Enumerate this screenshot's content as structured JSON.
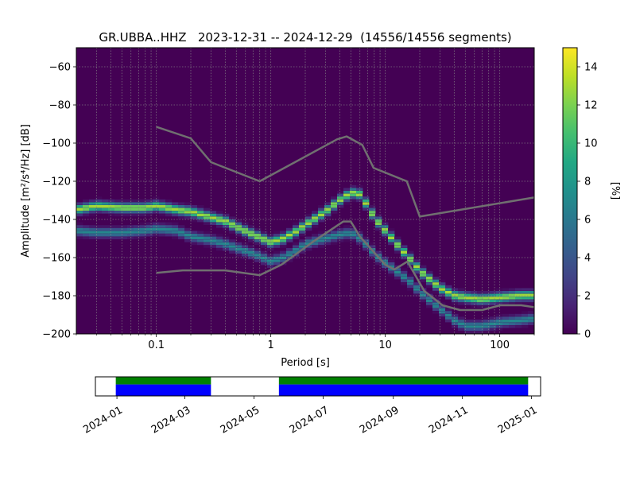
{
  "chart_data": [
    {
      "type": "heatmap",
      "title": "GR.UBBA..HHZ   2023-12-31 -- 2024-12-29  (14556/14556 segments)",
      "xlabel": "Period [s]",
      "ylabel": "Amplitude [m²/s⁴/Hz] [dB]",
      "x_scale": "log",
      "xlim": [
        0.02,
        200
      ],
      "ylim": [
        -200,
        -50
      ],
      "x_ticks": [
        {
          "value": 0.1,
          "label": "0.1"
        },
        {
          "value": 1,
          "label": "1"
        },
        {
          "value": 10,
          "label": "10"
        },
        {
          "value": 100,
          "label": "100"
        }
      ],
      "y_ticks": [
        -60,
        -80,
        -100,
        -120,
        -140,
        -160,
        -180,
        -200
      ],
      "grid": true,
      "colormap": "viridis",
      "colorbar": {
        "label": "[%]",
        "range": [
          0,
          15
        ],
        "ticks": [
          0,
          2,
          4,
          6,
          8,
          10,
          12,
          14
        ]
      },
      "colors": {
        "background": "#440154",
        "model_line": "#707070",
        "grid": "#8a8a8a"
      },
      "density_branches": [
        {
          "name": "",
          "points": [
            [
              0.02,
              -135
            ],
            [
              0.03,
              -133
            ],
            [
              0.05,
              -134
            ],
            [
              0.08,
              -134
            ],
            [
              0.1,
              -133
            ],
            [
              0.15,
              -135
            ],
            [
              0.2,
              -136
            ],
            [
              0.3,
              -139
            ],
            [
              0.4,
              -141
            ],
            [
              0.5,
              -144
            ],
            [
              0.7,
              -148
            ],
            [
              1,
              -152
            ],
            [
              1.3,
              -150
            ],
            [
              1.7,
              -146
            ],
            [
              2,
              -143
            ],
            [
              3,
              -136
            ],
            [
              4,
              -130
            ],
            [
              5,
              -126
            ],
            [
              6,
              -127
            ],
            [
              7,
              -133
            ],
            [
              8,
              -139
            ],
            [
              10,
              -146
            ],
            [
              13,
              -154
            ],
            [
              16,
              -160
            ],
            [
              20,
              -167
            ],
            [
              30,
              -176
            ],
            [
              40,
              -180
            ],
            [
              50,
              -181
            ],
            [
              70,
              -182
            ],
            [
              100,
              -181
            ],
            [
              150,
              -180
            ],
            [
              200,
              -180
            ]
          ],
          "peak": 13
        },
        {
          "name": "",
          "points": [
            [
              0.02,
              -146
            ],
            [
              0.03,
              -147
            ],
            [
              0.05,
              -147
            ],
            [
              0.08,
              -146
            ],
            [
              0.1,
              -145
            ],
            [
              0.15,
              -146
            ],
            [
              0.2,
              -149
            ],
            [
              0.3,
              -151
            ],
            [
              0.4,
              -153
            ],
            [
              0.5,
              -155
            ],
            [
              0.7,
              -158
            ],
            [
              1,
              -162
            ],
            [
              1.3,
              -160
            ],
            [
              1.7,
              -156
            ],
            [
              2,
              -153
            ],
            [
              3,
              -150
            ],
            [
              4,
              -148
            ],
            [
              5,
              -147
            ],
            [
              6,
              -150
            ],
            [
              7,
              -154
            ],
            [
              8,
              -158
            ],
            [
              10,
              -163
            ],
            [
              13,
              -168
            ],
            [
              16,
              -172
            ],
            [
              20,
              -178
            ],
            [
              30,
              -187
            ],
            [
              40,
              -193
            ],
            [
              50,
              -196
            ],
            [
              70,
              -196
            ],
            [
              100,
              -194
            ],
            [
              150,
              -193
            ],
            [
              200,
              -192
            ]
          ],
          "peak": 7
        }
      ],
      "series": [
        {
          "points": [
            [
              0.1,
              -91.5
            ],
            [
              0.2,
              -97.5
            ],
            [
              0.3,
              -110
            ],
            [
              0.8,
              -120
            ],
            [
              3.8,
              -98
            ],
            [
              4.6,
              -96.5
            ],
            [
              6.3,
              -101
            ],
            [
              7.9,
              -113
            ],
            [
              15.4,
              -120
            ],
            [
              20,
              -138.5
            ],
            [
              200,
              -128.5
            ]
          ]
        },
        {
          "points": [
            [
              0.1,
              -168
            ],
            [
              0.17,
              -166.7
            ],
            [
              0.4,
              -166.7
            ],
            [
              0.8,
              -169.2
            ],
            [
              1.24,
              -163.7
            ],
            [
              2.4,
              -151.2
            ],
            [
              4.3,
              -141.1
            ],
            [
              5,
              -141.1
            ],
            [
              6,
              -149
            ],
            [
              10,
              -163.8
            ],
            [
              12,
              -166.2
            ],
            [
              15.6,
              -162.1
            ],
            [
              21.9,
              -177.5
            ],
            [
              31.6,
              -185
            ],
            [
              45,
              -187.5
            ],
            [
              70,
              -187.5
            ],
            [
              101,
              -185
            ],
            [
              154,
              -185
            ],
            [
              200,
              -186
            ]
          ]
        }
      ]
    },
    {
      "type": "timeline",
      "x_ticks": [
        "2024-01",
        "2024-03",
        "2024-05",
        "2024-07",
        "2024-09",
        "2024-11",
        "2025-01"
      ],
      "xlim": [
        "2023-12-13",
        "2025-01-09"
      ],
      "coverage": [
        {
          "start": "2023-12-31",
          "end": "2024-03-24"
        },
        {
          "start": "2024-05-23",
          "end": "2024-12-29"
        }
      ],
      "colors": {
        "data": "#0000ff",
        "processed": "#008000"
      }
    }
  ]
}
